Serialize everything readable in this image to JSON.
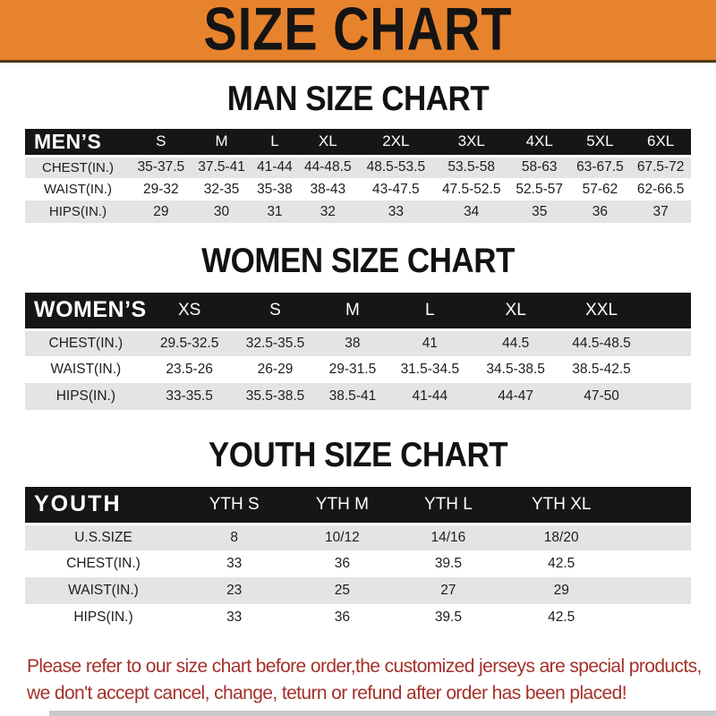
{
  "banner": {
    "title": "SIZE CHART",
    "bg_color": "#E8832D"
  },
  "man_section": {
    "title": "MAN SIZE CHART",
    "table": {
      "header": [
        "MEN’S",
        "S",
        "M",
        "L",
        "XL",
        "2XL",
        "3XL",
        "4XL",
        "5XL",
        "6XL"
      ],
      "rows": [
        [
          "CHEST(IN.)",
          "35-37.5",
          "37.5-41",
          "41-44",
          "44-48.5",
          "48.5-53.5",
          "53.5-58",
          "58-63",
          "63-67.5",
          "67.5-72"
        ],
        [
          "WAIST(IN.)",
          "29-32",
          "32-35",
          "35-38",
          "38-43",
          "43-47.5",
          "47.5-52.5",
          "52.5-57",
          "57-62",
          "62-66.5"
        ],
        [
          "HIPS(IN.)",
          "29",
          "30",
          "31",
          "32",
          "33",
          "34",
          "35",
          "36",
          "37"
        ]
      ]
    }
  },
  "women_section": {
    "title": "WOMEN SIZE CHART",
    "table": {
      "header": [
        "WOMEN’S",
        "XS",
        "S",
        "M",
        "L",
        "XL",
        "XXL"
      ],
      "rows": [
        [
          "CHEST(IN.)",
          "29.5-32.5",
          "32.5-35.5",
          "38",
          "41",
          "44.5",
          "44.5-48.5"
        ],
        [
          "WAIST(IN.)",
          "23.5-26",
          "26-29",
          "29-31.5",
          "31.5-34.5",
          "34.5-38.5",
          "38.5-42.5"
        ],
        [
          "HIPS(IN.)",
          "33-35.5",
          "35.5-38.5",
          "38.5-41",
          "41-44",
          "44-47",
          "47-50"
        ]
      ]
    }
  },
  "youth_section": {
    "title": "YOUTH SIZE CHART",
    "table": {
      "header": [
        "YOUTH",
        "YTH S",
        "YTH M",
        "YTH L",
        "YTH XL"
      ],
      "rows": [
        [
          "U.S.SIZE",
          "8",
          "10/12",
          "14/16",
          "18/20"
        ],
        [
          "CHEST(IN.)",
          "33",
          "36",
          "39.5",
          "42.5"
        ],
        [
          "WAIST(IN.)",
          "23",
          "25",
          "27",
          "29"
        ],
        [
          "HIPS(IN.)",
          "33",
          "36",
          "39.5",
          "42.5"
        ]
      ]
    }
  },
  "footer": {
    "line1": "Please refer to our size chart before order,the customized jerseys are special products,",
    "line2": "we don't accept cancel, change, teturn or refund after order has been placed!"
  },
  "colors": {
    "banner_orange": "#E8832D",
    "table_header_black": "#161616",
    "row_gray": "#E4E4E5",
    "note_red": "#A43129"
  }
}
